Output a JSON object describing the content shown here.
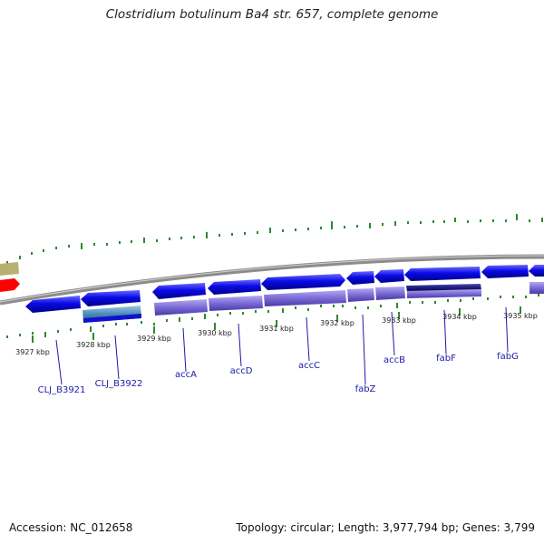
{
  "title": "Clostridium botulinum Ba4 str. 657, complete genome",
  "footer": {
    "accession": "Accession: NC_012658",
    "summary": "Topology: circular; Length: 3,977,794 bp; Genes: 3,799"
  },
  "ticks": [
    "3927 kbp",
    "3928 kbp",
    "3929 kbp",
    "3930 kbp",
    "3931 kbp",
    "3932 kbp",
    "3933 kbp",
    "3934 kbp",
    "3935 kbp"
  ],
  "genes": [
    "CLJ_B3921",
    "CLJ_B3922",
    "accA",
    "accD",
    "accC",
    "fabZ",
    "accB",
    "fabF",
    "fabG"
  ],
  "colors": {
    "backbone": "#8c8c8c",
    "gene": "#0a0ae6",
    "cds_feature": "#7a6ad6",
    "fabF_feature": "#1a1a7a",
    "b3922_feature": "#4a8ab8",
    "gc_track": "#2a8a2a",
    "label_line": "#1a1aa6",
    "red_feature": "#ff0000",
    "olive_feature": "#b8b070"
  }
}
